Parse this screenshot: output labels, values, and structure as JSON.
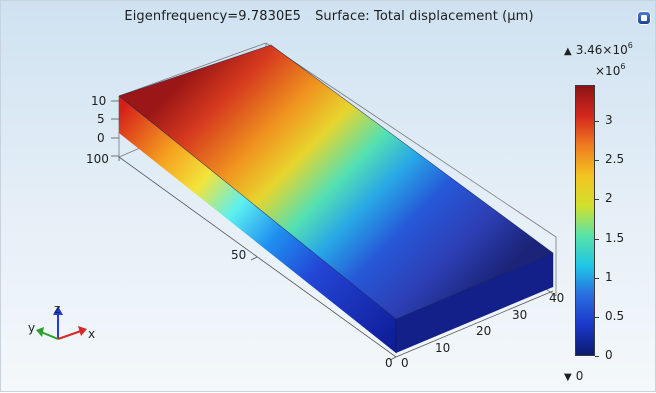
{
  "title": {
    "eigen": "Eigenfrequency=9.7830E5",
    "surface": "Surface: Total displacement (µm)"
  },
  "colorbar": {
    "max_label": "3.46",
    "max_exp": "6",
    "scale_base": "×10",
    "scale_exp": "6",
    "min_label": "0",
    "ticks": [
      "3",
      "2.5",
      "2",
      "1.5",
      "1",
      "0.5",
      "0"
    ],
    "tick_values": [
      3,
      2.5,
      2,
      1.5,
      1,
      0.5,
      0
    ],
    "range": [
      0,
      3.46
    ],
    "colormap": [
      "#0c1a6e",
      "#1a38c8",
      "#2a6de0",
      "#20c6e6",
      "#58e3a8",
      "#d3e02c",
      "#f3c321",
      "#ef7c1f",
      "#d4271e",
      "#8b1414"
    ]
  },
  "axes": {
    "z_ticks": [
      "10",
      "5",
      "0"
    ],
    "y_ticks": [
      "100",
      "50",
      "0"
    ],
    "x_ticks": [
      "0",
      "10",
      "20",
      "30",
      "40"
    ]
  },
  "triad": {
    "x": "x",
    "y": "y",
    "z": "z"
  }
}
